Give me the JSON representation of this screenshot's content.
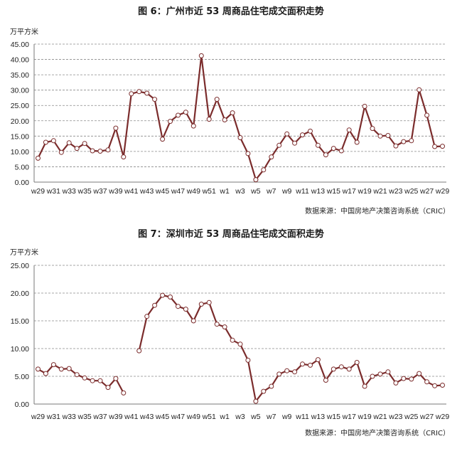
{
  "chart_data": [
    {
      "type": "line",
      "title": "图 6：广州市近 53 周商品住宅成交面积走势",
      "ylabel": "万平方米",
      "source": "数据来源：中国房地产决策咨询系统（CRIC）",
      "ylim": [
        0,
        45
      ],
      "yticks": [
        "0.00",
        "5.00",
        "10.00",
        "15.00",
        "20.00",
        "25.00",
        "30.00",
        "35.00",
        "40.00",
        "45.00"
      ],
      "xtick_labels": [
        "w29",
        "w31",
        "w33",
        "w35",
        "w37",
        "w39",
        "w41",
        "w43",
        "w45",
        "w47",
        "w49",
        "w51",
        "w1",
        "w3",
        "w5",
        "w7",
        "w9",
        "w11",
        "w13",
        "w15",
        "w17",
        "w19",
        "w21",
        "w23",
        "w25",
        "w27",
        "w29"
      ],
      "grid": true,
      "color": "#7B2C2C",
      "x": [
        "w29",
        "w30",
        "w31",
        "w32",
        "w33",
        "w34",
        "w35",
        "w36",
        "w37",
        "w38",
        "w39",
        "w40",
        "w41",
        "w42",
        "w43",
        "w44",
        "w45",
        "w46",
        "w47",
        "w48",
        "w49",
        "w50",
        "w51",
        "w52",
        "w1",
        "w2",
        "w3",
        "w4",
        "w5",
        "w6",
        "w7",
        "w8",
        "w9",
        "w10",
        "w11",
        "w12",
        "w13",
        "w14",
        "w15",
        "w16",
        "w17",
        "w18",
        "w19",
        "w20",
        "w21",
        "w22",
        "w23",
        "w24",
        "w25",
        "w26",
        "w27",
        "w28",
        "w29"
      ],
      "values": [
        7.8,
        13.0,
        13.5,
        9.7,
        12.8,
        11.0,
        12.6,
        10.2,
        10.1,
        10.5,
        17.6,
        8.2,
        28.8,
        29.5,
        29.0,
        27.0,
        14.0,
        19.8,
        21.8,
        22.8,
        18.3,
        41.2,
        20.5,
        27.0,
        20.3,
        22.6,
        14.5,
        9.3,
        0.8,
        4.0,
        8.2,
        12.0,
        15.7,
        12.7,
        15.4,
        16.6,
        12.0,
        8.9,
        11.0,
        10.2,
        17.0,
        13.0,
        24.7,
        17.5,
        15.0,
        15.2,
        11.8,
        13.2,
        13.5,
        30.1,
        21.8,
        11.6,
        11.7
      ]
    },
    {
      "type": "line",
      "title": "图 7：深圳市近 53 周商品住宅成交面积走势",
      "ylabel": "万平方米",
      "source": "数据来源：中国房地产决策咨询系统（CRIC）",
      "ylim": [
        0,
        25
      ],
      "yticks": [
        "0.00",
        "5.00",
        "10.00",
        "15.00",
        "20.00",
        "25.00"
      ],
      "xtick_labels": [
        "w29",
        "w31",
        "w33",
        "w35",
        "w37",
        "w39",
        "w41",
        "w43",
        "w45",
        "w47",
        "w49",
        "w51",
        "w1",
        "w3",
        "w5",
        "w7",
        "w9",
        "w11",
        "w13",
        "w15",
        "w17",
        "w19",
        "w21",
        "w23",
        "w25",
        "w27",
        "w29"
      ],
      "grid": true,
      "color": "#7B2C2C",
      "x": [
        "w29",
        "w30",
        "w31",
        "w32",
        "w33",
        "w34",
        "w35",
        "w36",
        "w37",
        "w38",
        "w39",
        "w40",
        "w41",
        "w42",
        "w43",
        "w44",
        "w45",
        "w46",
        "w47",
        "w48",
        "w49",
        "w50",
        "w51",
        "w52",
        "w1",
        "w2",
        "w3",
        "w4",
        "w5",
        "w6",
        "w7",
        "w8",
        "w9",
        "w10",
        "w11",
        "w12",
        "w13",
        "w14",
        "w15",
        "w16",
        "w17",
        "w18",
        "w19",
        "w20",
        "w21",
        "w22",
        "w23",
        "w24",
        "w25",
        "w26",
        "w27",
        "w28",
        "w29"
      ],
      "values": [
        6.3,
        5.5,
        7.1,
        6.3,
        6.4,
        5.3,
        4.7,
        4.2,
        4.2,
        3.0,
        4.6,
        2.0,
        null,
        9.6,
        15.8,
        17.8,
        19.6,
        19.3,
        17.6,
        17.1,
        15.0,
        18.0,
        18.3,
        14.4,
        13.9,
        11.5,
        10.8,
        7.9,
        0.5,
        2.3,
        3.2,
        5.4,
        6.0,
        5.8,
        7.2,
        7.0,
        8.0,
        4.3,
        6.3,
        6.7,
        6.3,
        7.5,
        3.2,
        5.0,
        5.4,
        5.8,
        3.8,
        4.6,
        4.5,
        5.5,
        4.0,
        3.3,
        3.4
      ]
    }
  ]
}
